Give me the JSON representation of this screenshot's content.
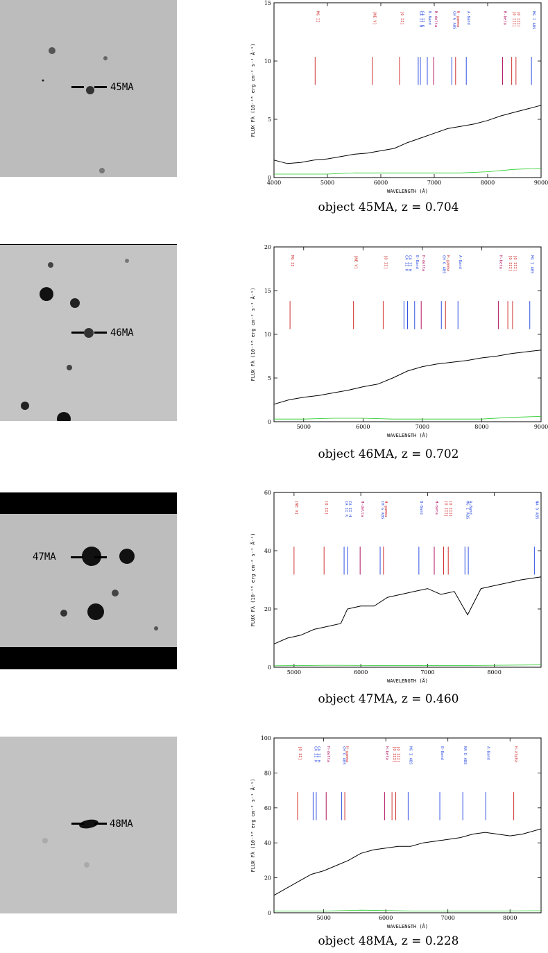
{
  "panels": [
    {
      "object": "45MA",
      "caption": "object 45MA, z = 0.704",
      "chart_data": {
        "type": "line",
        "xlabel": "WAVELENGTH (Å)",
        "ylabel": "FLUX Fλ (10⁻¹⁸ erg cm⁻² s⁻¹ Å⁻¹)",
        "xlim": [
          4000,
          9000
        ],
        "ylim": [
          0,
          15
        ],
        "xticks": [
          4000,
          5000,
          6000,
          7000,
          8000,
          9000
        ],
        "yticks": [
          0,
          5,
          10,
          15
        ],
        "series": [
          {
            "x": [
              4000,
              4250,
              4500,
              4750,
              5000,
              5250,
              5500,
              5750,
              6000,
              6250,
              6500,
              6750,
              7000,
              7250,
              7500,
              7750,
              8000,
              8250,
              8500,
              8750,
              9000
            ],
            "values": [
              1.5,
              1.2,
              1.3,
              1.5,
              1.6,
              1.8,
              2.0,
              2.1,
              2.3,
              2.5,
              3.0,
              3.4,
              3.8,
              4.2,
              4.4,
              4.6,
              4.9,
              5.3,
              5.6,
              5.9,
              6.2
            ]
          },
          {
            "x": [
              4000,
              4500,
              5000,
              5500,
              6000,
              6500,
              7000,
              7500,
              8000,
              8500,
              9000
            ],
            "values": [
              0.3,
              0.3,
              0.3,
              0.4,
              0.4,
              0.4,
              0.4,
              0.4,
              0.5,
              0.7,
              0.8
            ]
          }
        ],
        "lines": [
          {
            "label": "MG II",
            "wl": 4770,
            "color": "#d03030"
          },
          {
            "label": "[NE V]",
            "wl": 5840,
            "color": "#d03030"
          },
          {
            "label": "[O II]",
            "wl": 6350,
            "color": "#d03030"
          },
          {
            "label": "CA II H",
            "wl": 6700,
            "color": "#3050e0"
          },
          {
            "label": "CA II K",
            "wl": 6740,
            "color": "#3050e0"
          },
          {
            "label": "B-Band",
            "wl": 6870,
            "color": "#3050e0"
          },
          {
            "label": "H-delta",
            "wl": 6990,
            "color": "#b01060"
          },
          {
            "label": "CH G ABS",
            "wl": 7330,
            "color": "#3050e0"
          },
          {
            "label": "H-gamma",
            "wl": 7400,
            "color": "#d03030"
          },
          {
            "label": "A-Band",
            "wl": 7600,
            "color": "#3050e0"
          },
          {
            "label": "H-beta",
            "wl": 8280,
            "color": "#b01060"
          },
          {
            "label": "[O III]",
            "wl": 8450,
            "color": "#d03030"
          },
          {
            "label": "[O III]",
            "wl": 8530,
            "color": "#d03030"
          },
          {
            "label": "MG I ABS",
            "wl": 8820,
            "color": "#3050e0"
          }
        ]
      }
    },
    {
      "object": "46MA",
      "caption": "object 46MA, z = 0.702",
      "chart_data": {
        "type": "line",
        "xlabel": "WAVELENGTH (Å)",
        "ylabel": "FLUX Fλ (10⁻¹⁸ erg cm⁻² s⁻¹ Å⁻¹)",
        "xlim": [
          4500,
          9000
        ],
        "ylim": [
          0,
          20
        ],
        "xticks": [
          5000,
          6000,
          7000,
          8000,
          9000
        ],
        "yticks": [
          0,
          5,
          10,
          15,
          20
        ],
        "series": [
          {
            "x": [
              4500,
              4750,
              5000,
              5250,
              5500,
              5750,
              6000,
              6250,
              6500,
              6750,
              7000,
              7250,
              7500,
              7750,
              8000,
              8250,
              8500,
              8750,
              9000
            ],
            "values": [
              2.0,
              2.5,
              2.8,
              3.0,
              3.3,
              3.6,
              4.0,
              4.3,
              5.0,
              5.8,
              6.3,
              6.6,
              6.8,
              7.0,
              7.3,
              7.5,
              7.8,
              8.0,
              8.2
            ]
          },
          {
            "x": [
              4500,
              5000,
              5500,
              6000,
              6500,
              7000,
              7500,
              8000,
              8500,
              9000
            ],
            "values": [
              0.3,
              0.3,
              0.4,
              0.4,
              0.3,
              0.3,
              0.3,
              0.3,
              0.5,
              0.6
            ]
          }
        ],
        "lines": [
          {
            "label": "MG II",
            "wl": 4770,
            "color": "#d03030"
          },
          {
            "label": "[NE V]",
            "wl": 5840,
            "color": "#d03030"
          },
          {
            "label": "[O II]",
            "wl": 6340,
            "color": "#d03030"
          },
          {
            "label": "CA II K",
            "wl": 6690,
            "color": "#3050e0"
          },
          {
            "label": "CA II H",
            "wl": 6750,
            "color": "#3050e0"
          },
          {
            "label": "B-Band",
            "wl": 6870,
            "color": "#3050e0"
          },
          {
            "label": "H-delta",
            "wl": 6980,
            "color": "#b01060"
          },
          {
            "label": "CH G ABS",
            "wl": 7320,
            "color": "#3050e0"
          },
          {
            "label": "H-gamma",
            "wl": 7390,
            "color": "#d03030"
          },
          {
            "label": "A-Band",
            "wl": 7600,
            "color": "#3050e0"
          },
          {
            "label": "H-beta",
            "wl": 8280,
            "color": "#b01060"
          },
          {
            "label": "[O III]",
            "wl": 8440,
            "color": "#d03030"
          },
          {
            "label": "[O III]",
            "wl": 8520,
            "color": "#d03030"
          },
          {
            "label": "MG I ABS",
            "wl": 8810,
            "color": "#3050e0"
          }
        ]
      }
    },
    {
      "object": "47MA",
      "caption": "object 47MA, z = 0.460",
      "chart_data": {
        "type": "line",
        "xlabel": "WAVELENGTH (Å)",
        "ylabel": "FLUX Fλ (10⁻¹⁸ erg cm⁻² s⁻¹ Å⁻¹)",
        "xlim": [
          4700,
          8700
        ],
        "ylim": [
          0,
          60
        ],
        "xticks": [
          5000,
          6000,
          7000,
          8000
        ],
        "yticks": [
          0,
          20,
          40,
          60
        ],
        "series": [
          {
            "x": [
              4700,
              4900,
              5100,
              5300,
              5500,
              5700,
              5800,
              6000,
              6200,
              6400,
              6600,
              6800,
              7000,
              7200,
              7400,
              7600,
              7800,
              8000,
              8200,
              8400,
              8700
            ],
            "values": [
              8,
              10,
              11,
              13,
              14,
              15,
              20,
              21,
              21,
              24,
              25,
              26,
              27,
              25,
              26,
              18,
              27,
              28,
              29,
              30,
              31
            ]
          },
          {
            "x": [
              4700,
              5500,
              6500,
              7500,
              8700
            ],
            "values": [
              0.5,
              0.7,
              0.6,
              0.6,
              0.8
            ]
          }
        ],
        "lines": [
          {
            "label": "[NE V]",
            "wl": 5000,
            "color": "#d03030"
          },
          {
            "label": "[O II]",
            "wl": 5450,
            "color": "#d03030"
          },
          {
            "label": "CA II K",
            "wl": 5750,
            "color": "#3050e0"
          },
          {
            "label": "CA II H",
            "wl": 5800,
            "color": "#3050e0"
          },
          {
            "label": "H-delta",
            "wl": 5990,
            "color": "#b01060"
          },
          {
            "label": "CH G ABS",
            "wl": 6290,
            "color": "#3050e0"
          },
          {
            "label": "H-gamma",
            "wl": 6340,
            "color": "#d03030"
          },
          {
            "label": "B-Band",
            "wl": 6870,
            "color": "#3050e0"
          },
          {
            "label": "H-beta",
            "wl": 7100,
            "color": "#b01060"
          },
          {
            "label": "[O III]",
            "wl": 7240,
            "color": "#d03030"
          },
          {
            "label": "[O III]",
            "wl": 7310,
            "color": "#d03030"
          },
          {
            "label": "MG I ABS",
            "wl": 7560,
            "color": "#3050e0"
          },
          {
            "label": "A-Band",
            "wl": 7610,
            "color": "#3050e0"
          },
          {
            "label": "NA D ABS",
            "wl": 8600,
            "color": "#3050e0"
          }
        ]
      }
    },
    {
      "object": "48MA",
      "caption": "object 48MA, z = 0.228",
      "chart_data": {
        "type": "line",
        "xlabel": "WAVELENGTH (Å)",
        "ylabel": "FLUX Fλ (10⁻¹⁸ erg cm⁻² s⁻¹ Å⁻¹)",
        "xlim": [
          4200,
          8500
        ],
        "ylim": [
          0,
          100
        ],
        "xticks": [
          5000,
          6000,
          7000,
          8000
        ],
        "yticks": [
          0,
          20,
          40,
          60,
          80,
          100
        ],
        "series": [
          {
            "x": [
              4200,
              4400,
              4600,
              4800,
              5000,
              5200,
              5400,
              5600,
              5800,
              6000,
              6200,
              6400,
              6600,
              6800,
              7000,
              7200,
              7400,
              7600,
              7800,
              8000,
              8200,
              8500
            ],
            "values": [
              10,
              14,
              18,
              22,
              24,
              27,
              30,
              34,
              36,
              37,
              38,
              38,
              40,
              41,
              42,
              43,
              45,
              46,
              45,
              44,
              45,
              48
            ]
          },
          {
            "x": [
              4200,
              5000,
              5600,
              6500,
              7500,
              8500
            ],
            "values": [
              1,
              1,
              1.5,
              1,
              1,
              1.2
            ]
          }
        ],
        "lines": [
          {
            "label": "[O II]",
            "wl": 4580,
            "color": "#d03030"
          },
          {
            "label": "CA II K",
            "wl": 4830,
            "color": "#3050e0"
          },
          {
            "label": "CA II H",
            "wl": 4880,
            "color": "#3050e0"
          },
          {
            "label": "H-delta",
            "wl": 5040,
            "color": "#b01060"
          },
          {
            "label": "CH G ABS",
            "wl": 5290,
            "color": "#3050e0"
          },
          {
            "label": "H-gamma",
            "wl": 5340,
            "color": "#d03030"
          },
          {
            "label": "H-beta",
            "wl": 5980,
            "color": "#b01060"
          },
          {
            "label": "[O III]",
            "wl": 6100,
            "color": "#d03030"
          },
          {
            "label": "[O III]",
            "wl": 6160,
            "color": "#d03030"
          },
          {
            "label": "MG I ABS",
            "wl": 6360,
            "color": "#3050e0"
          },
          {
            "label": "B-Band",
            "wl": 6870,
            "color": "#3050e0"
          },
          {
            "label": "NA D ABS",
            "wl": 7240,
            "color": "#3050e0"
          },
          {
            "label": "A-Band",
            "wl": 7610,
            "color": "#3050e0"
          },
          {
            "label": "H-alpha",
            "wl": 8060,
            "color": "#d03030"
          }
        ]
      }
    }
  ],
  "colors": {
    "spectrum": "#000000",
    "noise": "#22cc22",
    "red_line": "#d03030",
    "blue_line": "#3050e0",
    "purple_line": "#b01060"
  }
}
